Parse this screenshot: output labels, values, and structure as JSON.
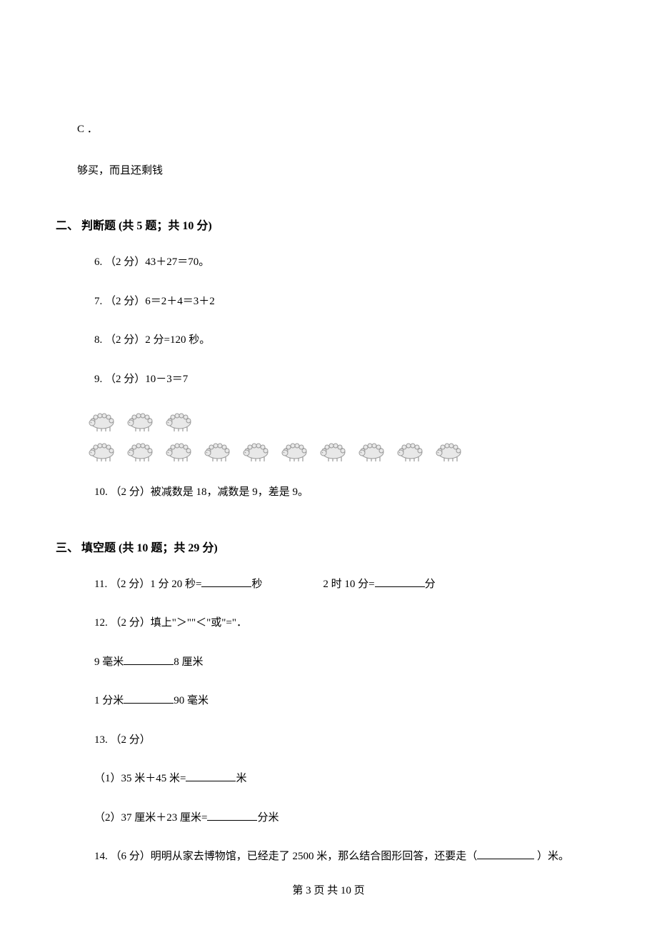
{
  "lines": {
    "optC_label": "C ．",
    "optC_text": "够买，而且还剩钱",
    "section2_header": "二、 判断题 (共 5 题；共 10 分)",
    "q6": "6. （2 分）43＋27＝70。",
    "q7": "7. （2 分）6＝2＋4＝3＋2",
    "q8": "8. （2 分）2 分=120 秒。",
    "q9": "9. （2 分）10－3＝7",
    "q10": "10. （2 分）被减数是 18，减数是 9，差是 9。",
    "section3_header": "三、 填空题 (共 10 题；共 29 分)",
    "q11_a": "11. （2 分）1 分 20 秒=",
    "q11_unit_a": "秒",
    "q11_b": "2 时 10 分=",
    "q11_unit_b": "分",
    "q12": "12. （2 分）填上\"＞\"\"＜\"或\"=\"．",
    "q12_a_left": "9 毫米",
    "q12_a_right": "8 厘米",
    "q12_b_left": "1 分米",
    "q12_b_right": "90 毫米",
    "q13": "13. （2 分）",
    "q13_1_left": "（1）35 米＋45 米=",
    "q13_1_unit": "米",
    "q13_2_left": "（2）37 厘米＋23 厘米=",
    "q13_2_unit": "分米",
    "q14_a": "14. （6 分）明明从家去博物馆，已经走了 2500 米，那么结合图形回答，还要走（",
    "q14_b": "  ）米。"
  },
  "footer": {
    "text": "第 3 页 共 10 页"
  },
  "sheep": {
    "row1_count": 3,
    "row2_count": 10,
    "stroke_color": "#999999",
    "fill_color": "#e8e8e8"
  }
}
